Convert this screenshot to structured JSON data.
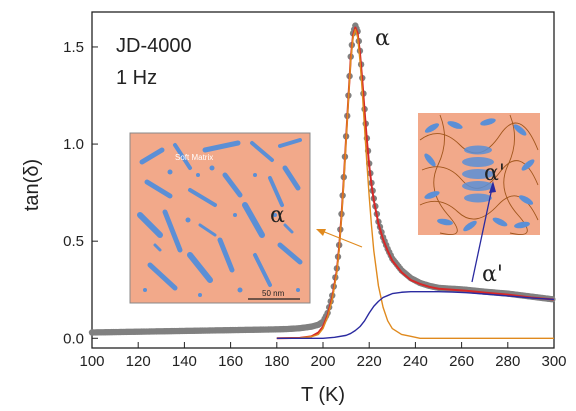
{
  "chart_data": {
    "type": "line",
    "xlabel": "T (K)",
    "ylabel": "tan(δ)",
    "xlim": [
      100,
      300
    ],
    "ylim": [
      -0.05,
      1.68
    ],
    "x_ticks": [
      100,
      120,
      140,
      160,
      180,
      200,
      220,
      240,
      260,
      280,
      300
    ],
    "y_ticks": [
      0.0,
      0.5,
      1.0,
      1.5
    ],
    "y_tick_labels": [
      "0.0",
      "0.5",
      "1.0",
      "1.5"
    ],
    "legend_text": [
      "JD-4000",
      "1 Hz"
    ],
    "peak_labels": {
      "alpha": "α",
      "alpha_prime": "α'"
    },
    "grid": false,
    "series": [
      {
        "color": "#808080",
        "marker": "circle",
        "x": [
          100,
          110,
          120,
          130,
          140,
          150,
          160,
          170,
          180,
          185,
          190,
          195,
          198,
          200,
          202,
          204,
          206,
          207,
          208,
          209,
          210,
          211,
          212,
          213,
          214,
          215,
          216,
          217,
          218,
          219,
          220,
          221,
          222,
          224,
          226,
          228,
          230,
          234,
          238,
          242,
          246,
          250,
          256,
          262,
          270,
          280,
          290,
          300
        ],
        "y": [
          0.03,
          0.032,
          0.034,
          0.036,
          0.038,
          0.04,
          0.042,
          0.044,
          0.046,
          0.048,
          0.052,
          0.06,
          0.07,
          0.085,
          0.13,
          0.22,
          0.36,
          0.48,
          0.64,
          0.83,
          1.04,
          1.25,
          1.45,
          1.57,
          1.61,
          1.58,
          1.48,
          1.34,
          1.18,
          1.03,
          0.9,
          0.8,
          0.72,
          0.6,
          0.52,
          0.46,
          0.41,
          0.35,
          0.31,
          0.285,
          0.27,
          0.26,
          0.255,
          0.25,
          0.24,
          0.23,
          0.215,
          0.2
        ]
      },
      {
        "color": "#d62828",
        "marker": "none",
        "x": [
          180,
          190,
          195,
          198,
          200,
          202,
          204,
          206,
          207,
          208,
          209,
          210,
          211,
          212,
          213,
          214,
          215,
          216,
          217,
          218,
          219,
          220,
          221,
          222,
          224,
          226,
          228,
          230,
          234,
          238,
          242,
          246,
          250,
          256,
          262,
          270,
          280,
          290,
          300
        ],
        "y": [
          0.0,
          0.002,
          0.01,
          0.03,
          0.06,
          0.12,
          0.21,
          0.35,
          0.47,
          0.63,
          0.82,
          1.03,
          1.24,
          1.44,
          1.56,
          1.6,
          1.57,
          1.47,
          1.33,
          1.17,
          1.02,
          0.89,
          0.79,
          0.71,
          0.59,
          0.51,
          0.45,
          0.4,
          0.34,
          0.3,
          0.28,
          0.265,
          0.255,
          0.25,
          0.245,
          0.235,
          0.225,
          0.21,
          0.2
        ]
      },
      {
        "color": "#e08a1e",
        "marker": "none",
        "x": [
          180,
          190,
          195,
          198,
          200,
          202,
          204,
          206,
          207,
          208,
          209,
          210,
          211,
          212,
          213,
          214,
          215,
          216,
          217,
          218,
          219,
          220,
          221,
          222,
          224,
          226,
          228,
          230,
          234,
          238,
          242,
          246,
          250,
          256,
          262,
          270,
          280,
          290,
          300
        ],
        "y": [
          0.0,
          0.002,
          0.008,
          0.02,
          0.05,
          0.11,
          0.2,
          0.34,
          0.46,
          0.62,
          0.81,
          1.02,
          1.23,
          1.43,
          1.55,
          1.59,
          1.55,
          1.43,
          1.27,
          1.08,
          0.9,
          0.73,
          0.58,
          0.45,
          0.27,
          0.16,
          0.09,
          0.05,
          0.02,
          0.01,
          0.0,
          0.0,
          0.0,
          0.0,
          0.0,
          0.0,
          0.0,
          0.0,
          0.0
        ]
      },
      {
        "color": "#2a2aa0",
        "marker": "none",
        "x": [
          180,
          190,
          200,
          205,
          210,
          212,
          214,
          216,
          218,
          220,
          222,
          224,
          226,
          228,
          230,
          234,
          238,
          242,
          246,
          250,
          256,
          262,
          270,
          280,
          290,
          300
        ],
        "y": [
          0.0,
          0.0,
          0.0,
          0.005,
          0.015,
          0.025,
          0.04,
          0.06,
          0.09,
          0.13,
          0.165,
          0.19,
          0.21,
          0.22,
          0.23,
          0.237,
          0.24,
          0.24,
          0.24,
          0.24,
          0.238,
          0.235,
          0.228,
          0.218,
          0.208,
          0.2
        ]
      }
    ]
  },
  "insets": {
    "left": {
      "label_soft_matrix": "Soft Matrix",
      "label_alpha": "α",
      "scale_bar": "50 nm"
    },
    "right": {
      "label_alpha_prime": "α'"
    }
  },
  "colors": {
    "inset_background": "#f2a98a",
    "inset_domain": "#5b8fd6",
    "arrow_orange": "#e08a1e",
    "arrow_blue": "#2a2aa0"
  }
}
